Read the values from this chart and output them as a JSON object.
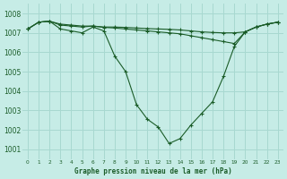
{
  "title": "Graphe pression niveau de la mer (hPa)",
  "background_color": "#c6ece6",
  "grid_color": "#a8d8d0",
  "line_color": "#1a5c28",
  "xlim": [
    -0.5,
    23.5
  ],
  "ylim": [
    1000.5,
    1008.5
  ],
  "yticks": [
    1001,
    1002,
    1003,
    1004,
    1005,
    1006,
    1007,
    1008
  ],
  "xticks": [
    0,
    1,
    2,
    3,
    4,
    5,
    6,
    7,
    8,
    9,
    10,
    11,
    12,
    13,
    14,
    15,
    16,
    17,
    18,
    19,
    20,
    21,
    22,
    23
  ],
  "series1": {
    "x": [
      0,
      1,
      2,
      3,
      4,
      5,
      6,
      7,
      8,
      9,
      10,
      11,
      12,
      13,
      14,
      15,
      16,
      17,
      18,
      19,
      20,
      21,
      22,
      23
    ],
    "y": [
      1007.2,
      1007.55,
      1007.6,
      1007.2,
      1007.1,
      1007.0,
      1007.3,
      1007.1,
      1005.8,
      1005.0,
      1003.3,
      1002.55,
      1002.15,
      1001.3,
      1001.55,
      1002.25,
      1002.85,
      1003.45,
      1004.75,
      1006.3,
      1007.05,
      1007.3,
      1007.45,
      1007.55
    ]
  },
  "series2": {
    "x": [
      0,
      1,
      2,
      3,
      4,
      5,
      6,
      7,
      8,
      9,
      10,
      11,
      12,
      13,
      14,
      15,
      16,
      17,
      18,
      19,
      20,
      21,
      22,
      23
    ],
    "y": [
      1007.2,
      1007.55,
      1007.6,
      1007.45,
      1007.4,
      1007.35,
      1007.35,
      1007.3,
      1007.3,
      1007.28,
      1007.25,
      1007.22,
      1007.2,
      1007.18,
      1007.15,
      1007.1,
      1007.05,
      1007.02,
      1007.0,
      1007.0,
      1007.05,
      1007.3,
      1007.45,
      1007.55
    ]
  },
  "series3": {
    "x": [
      0,
      1,
      2,
      3,
      4,
      5,
      6,
      7,
      8,
      9,
      10,
      11,
      12,
      13,
      14,
      15,
      16,
      17,
      18,
      19,
      20,
      21,
      22,
      23
    ],
    "y": [
      1007.2,
      1007.55,
      1007.6,
      1007.4,
      1007.35,
      1007.3,
      1007.35,
      1007.28,
      1007.25,
      1007.2,
      1007.15,
      1007.1,
      1007.05,
      1007.0,
      1006.95,
      1006.85,
      1006.75,
      1006.65,
      1006.55,
      1006.45,
      1007.05,
      1007.3,
      1007.45,
      1007.55
    ]
  }
}
